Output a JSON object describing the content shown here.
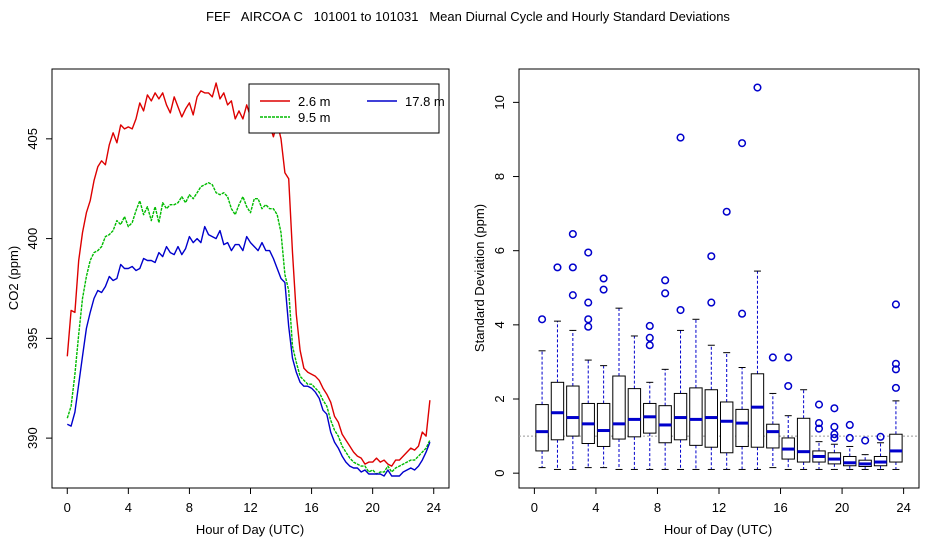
{
  "figure_title": "FEF   AIRCOA C   101001 to 101031   Mean Diurnal Cycle and Hourly Standard Deviations",
  "colors": {
    "s26": "#dd0000",
    "s95": "#00bb00",
    "s178": "#0000cc",
    "box": "#0000cc"
  },
  "chart_data": [
    {
      "type": "line",
      "xlabel": "Hour of Day (UTC)",
      "ylabel": "CO2 (ppm)",
      "xlim": [
        -1,
        25
      ],
      "ylim": [
        387.5,
        408.5
      ],
      "xticks": [
        0,
        4,
        8,
        12,
        16,
        20,
        24
      ],
      "xtick_labels": [
        "0",
        "4",
        "8",
        "12",
        "16",
        "20",
        "24"
      ],
      "yticks": [
        390,
        395,
        400,
        405
      ],
      "ytick_labels": [
        "390",
        "395",
        "400",
        "405"
      ],
      "legend": {
        "position": "top-right",
        "entries": [
          "2.6 m",
          "9.5 m",
          "17.8 m"
        ]
      },
      "x": [
        0,
        0.25,
        0.5,
        0.75,
        1,
        1.25,
        1.5,
        1.75,
        2,
        2.25,
        2.5,
        2.75,
        3,
        3.25,
        3.5,
        3.75,
        4,
        4.25,
        4.5,
        4.75,
        5,
        5.25,
        5.5,
        5.75,
        6,
        6.25,
        6.5,
        6.75,
        7,
        7.25,
        7.5,
        7.75,
        8,
        8.25,
        8.5,
        8.75,
        9,
        9.25,
        9.5,
        9.75,
        10,
        10.25,
        10.5,
        10.75,
        11,
        11.25,
        11.5,
        11.75,
        12,
        12.25,
        12.5,
        12.75,
        13,
        13.25,
        13.5,
        13.75,
        14,
        14.25,
        14.5,
        14.75,
        15,
        15.25,
        15.5,
        15.75,
        16,
        16.25,
        16.5,
        16.75,
        17,
        17.25,
        17.5,
        17.75,
        18,
        18.25,
        18.5,
        18.75,
        19,
        19.25,
        19.5,
        19.75,
        20,
        20.25,
        20.5,
        20.75,
        21,
        21.25,
        21.5,
        21.75,
        22,
        22.25,
        22.5,
        22.75,
        23,
        23.25,
        23.5,
        23.75
      ],
      "series": [
        {
          "name": "2.6 m",
          "color": "#dd0000",
          "values": [
            394.1,
            396.4,
            396.3,
            398.9,
            400.3,
            401.3,
            401.9,
            402.9,
            403.6,
            403.9,
            403.7,
            404.7,
            405.3,
            404.8,
            405.7,
            405.5,
            405.6,
            405.5,
            406.0,
            406.8,
            406.4,
            407.2,
            406.9,
            407.3,
            407.0,
            407.3,
            406.7,
            406.3,
            407.1,
            406.6,
            406.1,
            406.5,
            406.8,
            406.2,
            407.1,
            407.4,
            407.3,
            407.3,
            407.1,
            407.8,
            407.0,
            407.3,
            406.7,
            406.9,
            406.0,
            406.4,
            406.0,
            406.7,
            406.1,
            406.5,
            405.6,
            406.0,
            405.8,
            405.7,
            405.1,
            405.8,
            405.0,
            403.3,
            403.0,
            399.3,
            396.2,
            394.4,
            393.5,
            393.3,
            393.2,
            393.1,
            392.9,
            392.5,
            392.2,
            391.8,
            391.1,
            390.8,
            390.2,
            389.9,
            389.6,
            389.3,
            389.1,
            389.0,
            388.7,
            388.8,
            388.8,
            389.0,
            388.8,
            388.9,
            388.7,
            388.6,
            388.9,
            388.9,
            389.1,
            389.3,
            389.5,
            389.4,
            389.6,
            390.3,
            390.1,
            391.9
          ]
        },
        {
          "name": "9.5 m",
          "color": "#00bb00",
          "values": [
            391.0,
            391.6,
            393.2,
            395.2,
            397.0,
            398.1,
            398.9,
            399.3,
            399.4,
            399.6,
            400.1,
            400.2,
            400.4,
            400.9,
            400.7,
            401.1,
            400.6,
            400.8,
            401.4,
            401.9,
            401.2,
            401.6,
            400.9,
            401.6,
            400.8,
            401.8,
            401.5,
            401.7,
            401.7,
            401.8,
            402.1,
            401.8,
            402.2,
            402.0,
            402.3,
            402.6,
            402.7,
            402.8,
            402.7,
            402.3,
            402.2,
            402.3,
            402.1,
            401.5,
            401.2,
            401.7,
            402.1,
            401.6,
            401.3,
            402.0,
            402.0,
            401.5,
            401.7,
            401.5,
            401.5,
            401.2,
            400.3,
            398.2,
            397.4,
            394.6,
            393.8,
            393.1,
            392.9,
            392.7,
            392.7,
            392.5,
            392.3,
            391.9,
            391.6,
            390.9,
            390.4,
            390.1,
            389.6,
            389.3,
            389.0,
            388.8,
            388.7,
            388.6,
            388.6,
            388.3,
            388.4,
            388.2,
            388.3,
            388.3,
            388.6,
            388.3,
            388.5,
            388.6,
            388.7,
            388.8,
            388.9,
            388.9,
            389.1,
            389.3,
            389.5,
            389.9
          ]
        },
        {
          "name": "17.8 m",
          "color": "#0000cc",
          "values": [
            390.7,
            390.6,
            391.3,
            392.7,
            394.1,
            395.5,
            396.3,
            397.0,
            397.4,
            397.3,
            397.6,
            398.1,
            397.9,
            398.0,
            398.7,
            398.5,
            398.5,
            398.6,
            398.4,
            398.5,
            399.0,
            398.9,
            398.9,
            398.8,
            399.3,
            399.1,
            399.6,
            399.3,
            399.2,
            399.6,
            399.2,
            399.5,
            400.1,
            399.8,
            400.0,
            399.8,
            400.6,
            400.2,
            400.1,
            400.0,
            400.4,
            399.7,
            399.8,
            399.4,
            399.7,
            399.7,
            399.4,
            400.1,
            399.8,
            399.6,
            399.4,
            399.8,
            399.4,
            399.4,
            399.0,
            398.5,
            398.0,
            397.8,
            395.6,
            394.0,
            393.3,
            392.8,
            392.6,
            392.6,
            392.5,
            392.3,
            392.0,
            391.4,
            391.2,
            390.3,
            389.8,
            389.5,
            389.1,
            388.8,
            388.6,
            388.5,
            388.5,
            388.3,
            388.4,
            388.2,
            388.2,
            388.2,
            388.2,
            388.1,
            388.4,
            388.1,
            388.1,
            388.1,
            388.3,
            388.4,
            388.5,
            388.4,
            388.6,
            388.9,
            389.3,
            389.8
          ]
        }
      ]
    },
    {
      "type": "box",
      "xlabel": "Hour of Day (UTC)",
      "ylabel": "Standard Deviation (ppm)",
      "xlim": [
        -1,
        25
      ],
      "ylim": [
        -0.4,
        10.9
      ],
      "xticks": [
        0,
        4,
        8,
        12,
        16,
        20,
        24
      ],
      "xtick_labels": [
        "0",
        "4",
        "8",
        "12",
        "16",
        "20",
        "24"
      ],
      "yticks": [
        0,
        2,
        4,
        6,
        8,
        10
      ],
      "ytick_labels": [
        "0",
        "2",
        "4",
        "6",
        "8",
        "10"
      ],
      "reference_line": 1.0,
      "boxes": [
        {
          "hour": 0.5,
          "whislo": 0.15,
          "q1": 0.6,
          "med": 1.12,
          "q3": 1.85,
          "whishi": 3.3,
          "outliers": [
            4.15
          ]
        },
        {
          "hour": 1.5,
          "whislo": 0.1,
          "q1": 0.9,
          "med": 1.63,
          "q3": 2.45,
          "whishi": 4.1,
          "outliers": [
            5.55
          ]
        },
        {
          "hour": 2.5,
          "whislo": 0.1,
          "q1": 1.0,
          "med": 1.5,
          "q3": 2.35,
          "whishi": 3.85,
          "outliers": [
            4.8,
            5.55,
            6.45
          ]
        },
        {
          "hour": 3.5,
          "whislo": 0.15,
          "q1": 0.8,
          "med": 1.33,
          "q3": 1.88,
          "whishi": 3.05,
          "outliers": [
            3.95,
            4.15,
            4.6,
            5.95
          ]
        },
        {
          "hour": 4.5,
          "whislo": 0.15,
          "q1": 0.72,
          "med": 1.15,
          "q3": 1.88,
          "whishi": 2.9,
          "outliers": [
            4.95,
            5.25
          ]
        },
        {
          "hour": 5.5,
          "whislo": 0.1,
          "q1": 0.92,
          "med": 1.33,
          "q3": 2.62,
          "whishi": 4.45,
          "outliers": []
        },
        {
          "hour": 6.5,
          "whislo": 0.1,
          "q1": 0.98,
          "med": 1.45,
          "q3": 2.28,
          "whishi": 3.7,
          "outliers": []
        },
        {
          "hour": 7.5,
          "whislo": 0.1,
          "q1": 1.08,
          "med": 1.52,
          "q3": 1.88,
          "whishi": 2.45,
          "outliers": [
            3.45,
            3.65,
            3.97
          ]
        },
        {
          "hour": 8.5,
          "whislo": 0.1,
          "q1": 0.82,
          "med": 1.3,
          "q3": 1.82,
          "whishi": 2.8,
          "outliers": [
            4.85,
            5.2
          ]
        },
        {
          "hour": 9.5,
          "whislo": 0.1,
          "q1": 0.9,
          "med": 1.5,
          "q3": 2.15,
          "whishi": 3.85,
          "outliers": [
            4.4,
            9.05
          ]
        },
        {
          "hour": 10.5,
          "whislo": 0.1,
          "q1": 0.75,
          "med": 1.45,
          "q3": 2.3,
          "whishi": 4.15,
          "outliers": []
        },
        {
          "hour": 11.5,
          "whislo": 0.1,
          "q1": 0.7,
          "med": 1.5,
          "q3": 2.25,
          "whishi": 3.45,
          "outliers": [
            4.6,
            5.85
          ]
        },
        {
          "hour": 12.5,
          "whislo": 0.1,
          "q1": 0.55,
          "med": 1.4,
          "q3": 1.92,
          "whishi": 3.25,
          "outliers": [
            7.05
          ]
        },
        {
          "hour": 13.5,
          "whislo": 0.1,
          "q1": 0.72,
          "med": 1.35,
          "q3": 1.72,
          "whishi": 2.85,
          "outliers": [
            4.3,
            8.9
          ]
        },
        {
          "hour": 14.5,
          "whislo": 0.1,
          "q1": 0.7,
          "med": 1.78,
          "q3": 2.68,
          "whishi": 5.45,
          "outliers": [
            10.4
          ]
        },
        {
          "hour": 15.5,
          "whislo": 0.15,
          "q1": 0.68,
          "med": 1.12,
          "q3": 1.32,
          "whishi": 2.15,
          "outliers": [
            3.12
          ]
        },
        {
          "hour": 16.5,
          "whislo": 0.1,
          "q1": 0.38,
          "med": 0.65,
          "q3": 0.95,
          "whishi": 1.55,
          "outliers": [
            2.35,
            3.12
          ]
        },
        {
          "hour": 17.5,
          "whislo": 0.1,
          "q1": 0.3,
          "med": 0.58,
          "q3": 1.48,
          "whishi": 2.25,
          "outliers": []
        },
        {
          "hour": 18.5,
          "whislo": 0.1,
          "q1": 0.3,
          "med": 0.45,
          "q3": 0.6,
          "whishi": 0.85,
          "outliers": [
            1.2,
            1.35,
            1.85
          ]
        },
        {
          "hour": 19.5,
          "whislo": 0.1,
          "q1": 0.25,
          "med": 0.38,
          "q3": 0.55,
          "whishi": 0.78,
          "outliers": [
            0.95,
            1.05,
            1.25,
            1.75
          ]
        },
        {
          "hour": 20.5,
          "whislo": 0.1,
          "q1": 0.2,
          "med": 0.28,
          "q3": 0.45,
          "whishi": 0.72,
          "outliers": [
            0.95,
            1.3
          ]
        },
        {
          "hour": 21.5,
          "whislo": 0.1,
          "q1": 0.18,
          "med": 0.25,
          "q3": 0.35,
          "whishi": 0.5,
          "outliers": [
            0.88
          ]
        },
        {
          "hour": 22.5,
          "whislo": 0.1,
          "q1": 0.2,
          "med": 0.3,
          "q3": 0.45,
          "whishi": 0.82,
          "outliers": [
            0.98
          ]
        },
        {
          "hour": 23.5,
          "whislo": 0.1,
          "q1": 0.3,
          "med": 0.6,
          "q3": 1.05,
          "whishi": 1.95,
          "outliers": [
            2.3,
            2.8,
            2.95,
            4.55
          ]
        }
      ]
    }
  ]
}
